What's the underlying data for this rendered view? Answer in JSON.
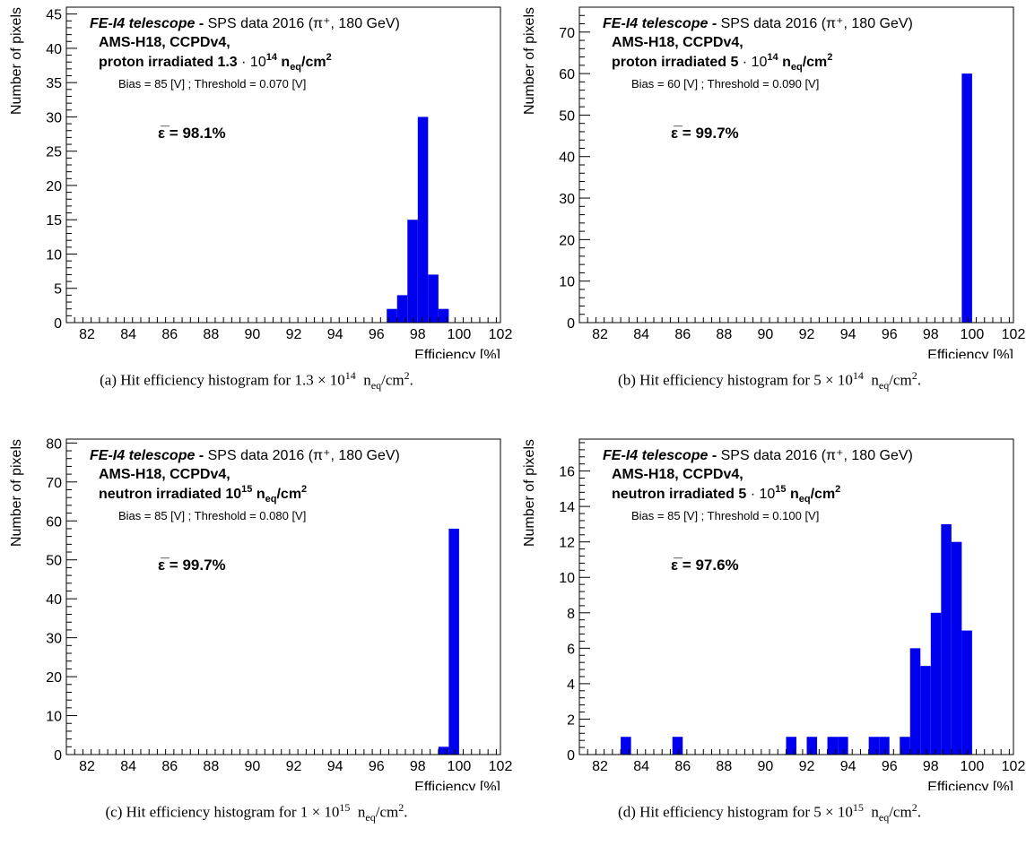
{
  "chart_data": [
    {
      "type": "bar",
      "panel": "a",
      "xlabel": "Efficiency [%]",
      "ylabel": "Number of pixels",
      "xlim": [
        81,
        102
      ],
      "ylim": [
        0,
        46
      ],
      "x_ticks": [
        "82",
        "84",
        "86",
        "88",
        "90",
        "92",
        "94",
        "96",
        "98",
        "100",
        "102"
      ],
      "y_ticks": [
        "0",
        "5",
        "10",
        "15",
        "20",
        "25",
        "30",
        "35",
        "40",
        "45"
      ],
      "y_tick_values": [
        0,
        5,
        10,
        15,
        20,
        25,
        30,
        35,
        40,
        45
      ],
      "bin_width": 0.5,
      "bins": [
        {
          "x": 96.5,
          "value": 2
        },
        {
          "x": 97.0,
          "value": 4
        },
        {
          "x": 97.5,
          "value": 15
        },
        {
          "x": 98.0,
          "value": 30
        },
        {
          "x": 98.5,
          "value": 7
        },
        {
          "x": 99.0,
          "value": 2
        }
      ],
      "title_bold": "FE-I4 telescope -",
      "title_rest": "SPS data 2016 (π⁺, 180 GeV)",
      "line2": "AMS-H18, CCPDv4,",
      "line3_pre": "proton irradiated 1.3 ",
      "line3_exp": "14",
      "bias_text": "Bias = 85 [V] ; Threshold = 0.070 [V]",
      "efficiency_text": "ε̅ = 98.1%",
      "caption": "(a) Hit efficiency histogram for 1.3 × 10¹⁴ n_eq/cm²."
    },
    {
      "type": "bar",
      "panel": "b",
      "xlabel": "Efficiency [%]",
      "ylabel": "Number of pixels",
      "xlim": [
        81,
        102
      ],
      "ylim": [
        0,
        76
      ],
      "x_ticks": [
        "82",
        "84",
        "86",
        "88",
        "90",
        "92",
        "94",
        "96",
        "98",
        "100",
        "102"
      ],
      "y_ticks": [
        "0",
        "10",
        "20",
        "30",
        "40",
        "50",
        "60",
        "70"
      ],
      "y_tick_values": [
        0,
        10,
        20,
        30,
        40,
        50,
        60,
        70
      ],
      "bin_width": 0.5,
      "bins": [
        {
          "x": 99.5,
          "value": 60
        }
      ],
      "title_bold": "FE-I4 telescope -",
      "title_rest": "SPS data 2016 (π⁺, 180 GeV)",
      "line2": "AMS-H18, CCPDv4,",
      "line3_pre": "proton irradiated 5 ",
      "line3_exp": "14",
      "bias_text": "Bias = 60 [V] ; Threshold = 0.090 [V]",
      "efficiency_text": "ε̅ = 99.7%",
      "caption": "(b) Hit efficiency histogram for 5 × 10¹⁴ n_eq/cm²."
    },
    {
      "type": "bar",
      "panel": "c",
      "xlabel": "Efficiency [%]",
      "ylabel": "Number of pixels",
      "xlim": [
        81,
        102
      ],
      "ylim": [
        0,
        81
      ],
      "x_ticks": [
        "82",
        "84",
        "86",
        "88",
        "90",
        "92",
        "94",
        "96",
        "98",
        "100",
        "102"
      ],
      "y_ticks": [
        "0",
        "10",
        "20",
        "30",
        "40",
        "50",
        "60",
        "70",
        "80"
      ],
      "y_tick_values": [
        0,
        10,
        20,
        30,
        40,
        50,
        60,
        70,
        80
      ],
      "bin_width": 0.5,
      "bins": [
        {
          "x": 99.0,
          "value": 2
        },
        {
          "x": 99.5,
          "value": 58
        }
      ],
      "title_bold": "FE-I4 telescope -",
      "title_rest": "SPS data 2016 (π⁺, 180 GeV)",
      "line2": "AMS-H18, CCPDv4,",
      "line3_pre": "neutron irradiated 10",
      "line3_exp": "15",
      "bias_text": "Bias = 85 [V] ; Threshold = 0.080 [V]",
      "efficiency_text": "ε̅ = 99.7%",
      "caption": "(c) Hit efficiency histogram for 1 × 10¹⁵ n_eq/cm²."
    },
    {
      "type": "bar",
      "panel": "d",
      "xlabel": "Efficiency [%]",
      "ylabel": "Number of pixels",
      "xlim": [
        81,
        102
      ],
      "ylim": [
        0,
        17.8
      ],
      "x_ticks": [
        "82",
        "84",
        "86",
        "88",
        "90",
        "92",
        "94",
        "96",
        "98",
        "100",
        "102"
      ],
      "y_ticks": [
        "0",
        "2",
        "4",
        "6",
        "8",
        "10",
        "12",
        "14",
        "16"
      ],
      "y_tick_values": [
        0,
        2,
        4,
        6,
        8,
        10,
        12,
        14,
        16
      ],
      "bin_width": 0.5,
      "bins": [
        {
          "x": 83.0,
          "value": 1
        },
        {
          "x": 85.5,
          "value": 1
        },
        {
          "x": 91.0,
          "value": 1
        },
        {
          "x": 92.0,
          "value": 1
        },
        {
          "x": 93.0,
          "value": 1
        },
        {
          "x": 93.5,
          "value": 1
        },
        {
          "x": 95.0,
          "value": 1
        },
        {
          "x": 95.5,
          "value": 1
        },
        {
          "x": 96.5,
          "value": 1
        },
        {
          "x": 97.0,
          "value": 6
        },
        {
          "x": 97.5,
          "value": 5
        },
        {
          "x": 98.0,
          "value": 8
        },
        {
          "x": 98.5,
          "value": 13
        },
        {
          "x": 99.0,
          "value": 12
        },
        {
          "x": 99.5,
          "value": 7
        }
      ],
      "title_bold": "FE-I4 telescope -",
      "title_rest": "SPS data 2016 (π⁺, 180 GeV)",
      "line2": "AMS-H18, CCPDv4,",
      "line3_pre": "neutron irradiated  5 ",
      "line3_exp": "15",
      "bias_text": "Bias = 85 [V] ; Threshold = 0.100 [V]",
      "efficiency_text": "ε̅ = 97.6%",
      "caption": "(d) Hit efficiency histogram for 5 × 10¹⁵ n_eq/cm²."
    }
  ],
  "colors": {
    "bar_fill": "#0000ee",
    "axis": "#000000"
  },
  "captions": {
    "a": {
      "pre": "(a)  Hit efficiency histogram for 1.3 × 10",
      "exp": "14",
      "unit": "n",
      "sub": "eq",
      "post": "/cm",
      "post_exp": "2",
      "end": "."
    },
    "b": {
      "pre": "(b)  Hit efficiency histogram for 5 × 10",
      "exp": "14",
      "unit": "n",
      "sub": "eq",
      "post": "/cm",
      "post_exp": "2",
      "end": "."
    },
    "c": {
      "pre": "(c)  Hit efficiency histogram for 1 × 10",
      "exp": "15",
      "unit": "n",
      "sub": "eq",
      "post": "/cm",
      "post_exp": "2",
      "end": "."
    },
    "d": {
      "pre": "(d)  Hit efficiency histogram for 5 × 10",
      "exp": "15",
      "unit": "n",
      "sub": "eq",
      "post": "/cm",
      "post_exp": "2",
      "end": "."
    }
  },
  "units": {
    "neq_n": "n",
    "neq_sub": "eq",
    "neq_cm": "/cm",
    "neq_cm_exp": "2",
    "dot": "·",
    "ten": "10"
  }
}
